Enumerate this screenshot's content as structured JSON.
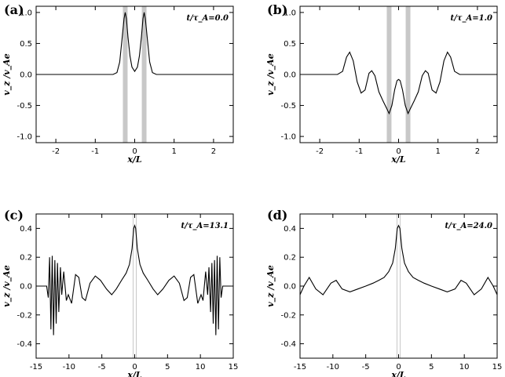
{
  "chart_data": [
    {
      "type": "line",
      "panel_label": "(a)",
      "annotation": "t/τ_A=0.0",
      "xlabel": "x/L",
      "ylabel": "v_z /v_Ae",
      "xlim": [
        -2.5,
        2.5
      ],
      "ylim": [
        -1.1,
        1.1
      ],
      "xticks": [
        "-2",
        "-1",
        "0",
        "1",
        "2"
      ],
      "yticks": [
        "-1.0",
        "-0.5",
        "0.0",
        "0.5",
        "1.0"
      ],
      "highlight_bands_x": [
        -0.24,
        0.24
      ],
      "series": [
        {
          "x": [
            -2.5,
            -0.55,
            -0.45,
            -0.38,
            -0.32,
            -0.27,
            -0.24,
            -0.21,
            -0.17,
            -0.12,
            -0.07,
            0,
            0.07,
            0.12,
            0.17,
            0.21,
            0.24,
            0.27,
            0.32,
            0.38,
            0.45,
            0.55,
            2.5
          ],
          "y": [
            0,
            0,
            0.03,
            0.2,
            0.58,
            0.9,
            1.0,
            0.9,
            0.6,
            0.3,
            0.12,
            0.05,
            0.12,
            0.3,
            0.6,
            0.9,
            1.0,
            0.9,
            0.58,
            0.2,
            0.03,
            0,
            0
          ]
        }
      ]
    },
    {
      "type": "line",
      "panel_label": "(b)",
      "annotation": "t/τ_A=1.0",
      "xlabel": "x/L",
      "ylabel": "v_z /v_Ae",
      "xlim": [
        -2.5,
        2.5
      ],
      "ylim": [
        -1.1,
        1.1
      ],
      "xticks": [
        "-2",
        "-1",
        "0",
        "1",
        "2"
      ],
      "yticks": [
        "-1.0",
        "-0.5",
        "0.0",
        "0.5",
        "1.0"
      ],
      "highlight_bands_x": [
        -0.24,
        0.24
      ],
      "series": [
        {
          "x": [
            -2.5,
            -1.55,
            -1.42,
            -1.32,
            -1.24,
            -1.15,
            -1.05,
            -0.95,
            -0.85,
            -0.75,
            -0.68,
            -0.6,
            -0.5,
            -0.4,
            -0.3,
            -0.24,
            -0.17,
            -0.1,
            -0.04,
            0,
            0.04,
            0.1,
            0.17,
            0.24,
            0.3,
            0.4,
            0.5,
            0.6,
            0.68,
            0.75,
            0.85,
            0.95,
            1.05,
            1.15,
            1.24,
            1.32,
            1.42,
            1.55,
            2.5
          ],
          "y": [
            0,
            0,
            0.05,
            0.28,
            0.36,
            0.22,
            -0.12,
            -0.3,
            -0.25,
            0.02,
            0.06,
            -0.02,
            -0.28,
            -0.42,
            -0.55,
            -0.63,
            -0.5,
            -0.25,
            -0.1,
            -0.08,
            -0.1,
            -0.25,
            -0.5,
            -0.63,
            -0.55,
            -0.42,
            -0.28,
            -0.02,
            0.06,
            0.02,
            -0.25,
            -0.3,
            -0.12,
            0.22,
            0.36,
            0.28,
            0.05,
            0,
            0
          ]
        }
      ]
    },
    {
      "type": "line",
      "panel_label": "(c)",
      "annotation": "t/τ_A=13.1",
      "xlabel": "x/L",
      "ylabel": "v_z /v_Ae",
      "xlim": [
        -15,
        15
      ],
      "ylim": [
        -0.5,
        0.5
      ],
      "xticks": [
        "-15",
        "-10",
        "-5",
        "0",
        "5",
        "10",
        "15"
      ],
      "yticks": [
        "-0.4",
        "-0.2",
        "0.0",
        "0.2",
        "0.4"
      ],
      "highlight_bands_x": [
        -0.24,
        0.24
      ],
      "series": [
        {
          "x": [
            -15,
            -13.4,
            -13.15,
            -12.95,
            -12.75,
            -12.55,
            -12.35,
            -12.15,
            -11.95,
            -11.75,
            -11.55,
            -11.3,
            -11.1,
            -10.8,
            -10.4,
            -10.1,
            -9.6,
            -9.0,
            -8.5,
            -8.0,
            -7.5,
            -6.8,
            -6.0,
            -5.2,
            -4.3,
            -3.5,
            -2.8,
            -2.0,
            -1.3,
            -0.8,
            -0.4,
            -0.15,
            0,
            0.15,
            0.4,
            0.8,
            1.3,
            2.0,
            2.8,
            3.5,
            4.3,
            5.2,
            6.0,
            6.8,
            7.5,
            8.0,
            8.5,
            9.0,
            9.6,
            10.1,
            10.4,
            10.8,
            11.1,
            11.3,
            11.55,
            11.75,
            11.95,
            12.15,
            12.35,
            12.55,
            12.75,
            12.95,
            13.15,
            13.4,
            15
          ],
          "y": [
            0,
            0,
            -0.08,
            0.2,
            -0.3,
            0.21,
            -0.34,
            0.18,
            -0.26,
            0.16,
            -0.18,
            0.13,
            -0.06,
            0.1,
            -0.1,
            -0.06,
            -0.12,
            0.08,
            0.06,
            -0.08,
            -0.1,
            0.02,
            0.07,
            0.04,
            -0.02,
            -0.06,
            -0.02,
            0.04,
            0.09,
            0.15,
            0.26,
            0.4,
            0.42,
            0.4,
            0.26,
            0.15,
            0.09,
            0.04,
            -0.02,
            -0.06,
            -0.02,
            0.04,
            0.07,
            0.02,
            -0.1,
            -0.08,
            0.06,
            0.08,
            -0.12,
            -0.06,
            -0.1,
            0.1,
            -0.06,
            0.13,
            -0.18,
            0.16,
            -0.26,
            0.18,
            -0.34,
            0.21,
            -0.3,
            0.2,
            -0.08,
            0,
            0
          ]
        }
      ]
    },
    {
      "type": "line",
      "panel_label": "(d)",
      "annotation": "t/τ_A=24.0",
      "xlabel": "x/L",
      "ylabel": "v_z /v_Ae",
      "xlim": [
        -15,
        15
      ],
      "ylim": [
        -0.5,
        0.5
      ],
      "xticks": [
        "-15",
        "-10",
        "-5",
        "0",
        "5",
        "10",
        "15"
      ],
      "yticks": [
        "-0.4",
        "-0.2",
        "0.0",
        "0.2",
        "0.4"
      ],
      "highlight_bands_x": [
        -0.24,
        0.24
      ],
      "series": [
        {
          "x": [
            -15,
            -14.4,
            -13.6,
            -12.6,
            -11.5,
            -10.3,
            -9.5,
            -8.6,
            -7.4,
            -6.2,
            -5.0,
            -3.9,
            -3.0,
            -2.2,
            -1.5,
            -0.9,
            -0.5,
            -0.2,
            0,
            0.2,
            0.5,
            0.9,
            1.5,
            2.2,
            3.0,
            3.9,
            5.0,
            6.2,
            7.4,
            8.6,
            9.5,
            10.3,
            11.5,
            12.6,
            13.6,
            14.4,
            15
          ],
          "y": [
            -0.06,
            0.0,
            0.06,
            -0.02,
            -0.06,
            0.02,
            0.04,
            -0.02,
            -0.04,
            -0.02,
            0.0,
            0.02,
            0.04,
            0.06,
            0.1,
            0.16,
            0.26,
            0.4,
            0.42,
            0.4,
            0.26,
            0.16,
            0.1,
            0.06,
            0.04,
            0.02,
            0.0,
            -0.02,
            -0.04,
            -0.02,
            0.04,
            0.02,
            -0.06,
            -0.02,
            0.06,
            0.0,
            -0.06
          ]
        }
      ]
    }
  ]
}
